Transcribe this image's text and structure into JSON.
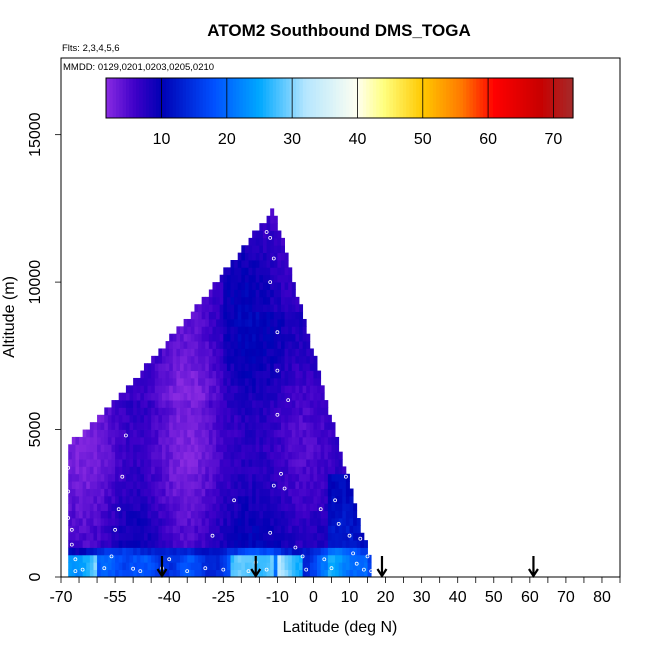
{
  "chart_data": {
    "type": "heatmap",
    "title": "ATOM2 Southbound DMS_TOGA",
    "flights_note": "Flts: 2,3,4,5,6",
    "dates_note": "MMDD: 0129,0201,0203,0205,0210",
    "xlabel": "Latitude (deg N)",
    "ylabel": "Altitude (m)",
    "xlim": [
      -70,
      85
    ],
    "ylim": [
      0,
      17600
    ],
    "x_ticks": [
      -70,
      -55,
      -40,
      -25,
      -10,
      0,
      10,
      20,
      30,
      40,
      50,
      60,
      70,
      80
    ],
    "x_minor_step": 5,
    "y_ticks": [
      0,
      5000,
      10000,
      15000
    ],
    "colorbar": {
      "ticks": [
        10,
        20,
        30,
        40,
        50,
        60,
        70
      ],
      "range": [
        1.5,
        73
      ],
      "stops": [
        {
          "v": 1.5,
          "c": "#8a2be2"
        },
        {
          "v": 6,
          "c": "#3d00c8"
        },
        {
          "v": 10,
          "c": "#0000b4"
        },
        {
          "v": 18,
          "c": "#0050ff"
        },
        {
          "v": 25,
          "c": "#00a8ff"
        },
        {
          "v": 32,
          "c": "#b4e6ff"
        },
        {
          "v": 40,
          "c": "#fffff0"
        },
        {
          "v": 44,
          "c": "#ffff80"
        },
        {
          "v": 50,
          "c": "#ffc800"
        },
        {
          "v": 56,
          "c": "#ff7800"
        },
        {
          "v": 61,
          "c": "#ff0000"
        },
        {
          "v": 68,
          "c": "#c80000"
        },
        {
          "v": 73,
          "c": "#a52a2a"
        }
      ]
    },
    "coverage": {
      "description": "Triangular altitude-latitude region of gridded DMS values",
      "lat_min": -68,
      "lat_max": 16,
      "peak_lat": -11,
      "peak_alt": 12400
    },
    "arrows_latitude": [
      -42,
      -16,
      19,
      61
    ]
  }
}
